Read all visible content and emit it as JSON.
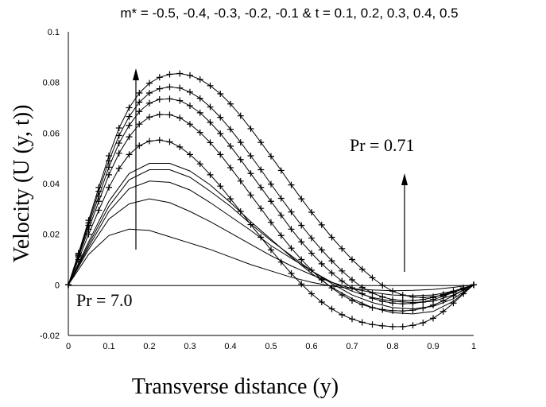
{
  "chart_data": {
    "type": "line",
    "title": "m* = -0.5, -0.4, -0.3, -0.2, -0.1 & t = 0.1, 0.2, 0.3, 0.4, 0.5",
    "xlabel": "Transverse distance (y)",
    "ylabel": "Velocity (U (y, t))",
    "xlim": [
      0,
      1
    ],
    "ylim": [
      -0.02,
      0.1
    ],
    "xticks": [
      "0",
      "0.1",
      "0.2",
      "0.3",
      "0.4",
      "0.5",
      "0.6",
      "0.7",
      "0.8",
      "0.9",
      "1"
    ],
    "yticks": [
      "-0.02",
      "0",
      "0.02",
      "0.04",
      "0.06",
      "0.08",
      "0.1"
    ],
    "grid": false,
    "legend": "none",
    "annotations": [
      {
        "text": "Pr = 0.71"
      },
      {
        "text": "Pr = 7.0"
      }
    ],
    "series": [
      {
        "marker": "none",
        "x": [
          0,
          0.05,
          0.1,
          0.15,
          0.2,
          0.25,
          0.3,
          0.35,
          0.4,
          0.45,
          0.5,
          0.55,
          0.6,
          0.65,
          0.7,
          0.75,
          0.8,
          0.85,
          0.9,
          0.95,
          1.0
        ],
        "values": [
          0,
          0.012,
          0.0195,
          0.022,
          0.0215,
          0.019,
          0.0165,
          0.014,
          0.011,
          0.008,
          0.0055,
          0.003,
          0.001,
          -0.0005,
          -0.0015,
          -0.002,
          -0.0023,
          -0.0022,
          -0.0018,
          -0.001,
          0
        ]
      },
      {
        "marker": "none",
        "x": [
          0,
          0.05,
          0.1,
          0.15,
          0.2,
          0.25,
          0.3,
          0.35,
          0.4,
          0.45,
          0.5,
          0.55,
          0.6,
          0.65,
          0.7,
          0.75,
          0.8,
          0.85,
          0.9,
          0.95,
          1.0
        ],
        "values": [
          0,
          0.014,
          0.026,
          0.032,
          0.034,
          0.0325,
          0.029,
          0.025,
          0.0205,
          0.016,
          0.0115,
          0.0075,
          0.004,
          0.001,
          -0.0015,
          -0.003,
          -0.004,
          -0.0043,
          -0.004,
          -0.0025,
          0
        ]
      },
      {
        "marker": "none",
        "x": [
          0,
          0.05,
          0.1,
          0.15,
          0.2,
          0.25,
          0.3,
          0.35,
          0.4,
          0.45,
          0.5,
          0.55,
          0.6,
          0.65,
          0.7,
          0.75,
          0.8,
          0.85,
          0.9,
          0.95,
          1.0
        ],
        "values": [
          0,
          0.015,
          0.029,
          0.038,
          0.041,
          0.0405,
          0.0375,
          0.0325,
          0.027,
          0.0215,
          0.0155,
          0.0105,
          0.0055,
          0.001,
          -0.0025,
          -0.005,
          -0.0065,
          -0.007,
          -0.0065,
          -0.004,
          0
        ]
      },
      {
        "marker": "none",
        "x": [
          0,
          0.05,
          0.1,
          0.15,
          0.2,
          0.25,
          0.3,
          0.35,
          0.4,
          0.45,
          0.5,
          0.55,
          0.6,
          0.65,
          0.7,
          0.75,
          0.8,
          0.85,
          0.9,
          0.95,
          1.0
        ],
        "values": [
          0,
          0.016,
          0.031,
          0.0415,
          0.0455,
          0.0455,
          0.0425,
          0.037,
          0.031,
          0.024,
          0.0175,
          0.0115,
          0.0055,
          0.0005,
          -0.004,
          -0.007,
          -0.009,
          -0.0095,
          -0.0085,
          -0.0055,
          0
        ]
      },
      {
        "marker": "none",
        "x": [
          0,
          0.05,
          0.1,
          0.15,
          0.2,
          0.25,
          0.3,
          0.35,
          0.4,
          0.45,
          0.5,
          0.55,
          0.6,
          0.65,
          0.7,
          0.75,
          0.8,
          0.85,
          0.9,
          0.95,
          1.0
        ],
        "values": [
          0,
          0.017,
          0.033,
          0.044,
          0.048,
          0.048,
          0.045,
          0.0395,
          0.0325,
          0.025,
          0.018,
          0.011,
          0.0045,
          -0.001,
          -0.0055,
          -0.009,
          -0.011,
          -0.0115,
          -0.0105,
          -0.0065,
          0
        ]
      },
      {
        "marker": "+",
        "x": [
          0,
          0.025,
          0.05,
          0.075,
          0.1,
          0.125,
          0.15,
          0.175,
          0.2,
          0.225,
          0.25,
          0.275,
          0.3,
          0.325,
          0.35,
          0.375,
          0.4,
          0.425,
          0.45,
          0.475,
          0.5,
          0.525,
          0.55,
          0.575,
          0.6,
          0.625,
          0.65,
          0.675,
          0.7,
          0.725,
          0.75,
          0.775,
          0.8,
          0.825,
          0.85,
          0.875,
          0.9,
          0.925,
          0.95,
          0.975,
          1.0
        ],
        "values": [
          0,
          0.01,
          0.02,
          0.0295,
          0.0385,
          0.046,
          0.0515,
          0.055,
          0.0568,
          0.0572,
          0.0565,
          0.0545,
          0.0515,
          0.0478,
          0.0435,
          0.039,
          0.034,
          0.029,
          0.0238,
          0.0188,
          0.0138,
          0.009,
          0.0045,
          0.0003,
          -0.0035,
          -0.0068,
          -0.0095,
          -0.0118,
          -0.0135,
          -0.0148,
          -0.0157,
          -0.0162,
          -0.0165,
          -0.0165,
          -0.016,
          -0.015,
          -0.0132,
          -0.0105,
          -0.0072,
          -0.0035,
          0
        ]
      },
      {
        "marker": "+",
        "x": [
          0,
          0.025,
          0.05,
          0.075,
          0.1,
          0.125,
          0.15,
          0.175,
          0.2,
          0.225,
          0.25,
          0.275,
          0.3,
          0.325,
          0.35,
          0.375,
          0.4,
          0.425,
          0.45,
          0.475,
          0.5,
          0.525,
          0.55,
          0.575,
          0.6,
          0.625,
          0.65,
          0.675,
          0.7,
          0.725,
          0.75,
          0.775,
          0.8,
          0.825,
          0.85,
          0.875,
          0.9,
          0.925,
          0.95,
          0.975,
          1.0
        ],
        "values": [
          0,
          0.011,
          0.022,
          0.033,
          0.0435,
          0.052,
          0.0585,
          0.0635,
          0.0663,
          0.0673,
          0.0672,
          0.066,
          0.0635,
          0.0602,
          0.0562,
          0.0515,
          0.0463,
          0.041,
          0.0355,
          0.0302,
          0.0247,
          0.0195,
          0.0145,
          0.01,
          0.0058,
          0.002,
          -0.0012,
          -0.004,
          -0.0062,
          -0.0078,
          -0.009,
          -0.0098,
          -0.0102,
          -0.0103,
          -0.01,
          -0.0092,
          -0.008,
          -0.0063,
          -0.0043,
          -0.002,
          0
        ]
      },
      {
        "marker": "+",
        "x": [
          0,
          0.025,
          0.05,
          0.075,
          0.1,
          0.125,
          0.15,
          0.175,
          0.2,
          0.225,
          0.25,
          0.275,
          0.3,
          0.325,
          0.35,
          0.375,
          0.4,
          0.425,
          0.45,
          0.475,
          0.5,
          0.525,
          0.55,
          0.575,
          0.6,
          0.625,
          0.65,
          0.675,
          0.7,
          0.725,
          0.75,
          0.775,
          0.8,
          0.825,
          0.85,
          0.875,
          0.9,
          0.925,
          0.95,
          0.975,
          1.0
        ],
        "values": [
          0,
          0.0115,
          0.0235,
          0.035,
          0.0465,
          0.056,
          0.063,
          0.0685,
          0.0718,
          0.0733,
          0.0735,
          0.0728,
          0.0708,
          0.068,
          0.0642,
          0.0598,
          0.0548,
          0.0495,
          0.044,
          0.0385,
          0.033,
          0.0275,
          0.022,
          0.017,
          0.0125,
          0.0083,
          0.0047,
          0.0015,
          -0.0012,
          -0.0035,
          -0.0053,
          -0.0065,
          -0.0072,
          -0.0075,
          -0.0073,
          -0.0068,
          -0.0058,
          -0.0045,
          -0.003,
          -0.0014,
          0
        ]
      },
      {
        "marker": "+",
        "x": [
          0,
          0.025,
          0.05,
          0.075,
          0.1,
          0.125,
          0.15,
          0.175,
          0.2,
          0.225,
          0.25,
          0.275,
          0.3,
          0.325,
          0.35,
          0.375,
          0.4,
          0.425,
          0.45,
          0.475,
          0.5,
          0.525,
          0.55,
          0.575,
          0.6,
          0.625,
          0.65,
          0.675,
          0.7,
          0.725,
          0.75,
          0.775,
          0.8,
          0.825,
          0.85,
          0.875,
          0.9,
          0.925,
          0.95,
          0.975,
          1.0
        ],
        "values": [
          0,
          0.012,
          0.0245,
          0.037,
          0.049,
          0.059,
          0.0665,
          0.0722,
          0.0758,
          0.0775,
          0.0782,
          0.0778,
          0.0762,
          0.0737,
          0.0703,
          0.0662,
          0.0615,
          0.0563,
          0.051,
          0.0455,
          0.0398,
          0.0342,
          0.0288,
          0.0235,
          0.0185,
          0.0138,
          0.0095,
          0.0055,
          0.002,
          -0.001,
          -0.0032,
          -0.0048,
          -0.0058,
          -0.0062,
          -0.0062,
          -0.0058,
          -0.005,
          -0.0038,
          -0.0025,
          -0.0012,
          0
        ]
      },
      {
        "marker": "+",
        "x": [
          0,
          0.025,
          0.05,
          0.075,
          0.1,
          0.125,
          0.15,
          0.175,
          0.2,
          0.225,
          0.25,
          0.275,
          0.3,
          0.325,
          0.35,
          0.375,
          0.4,
          0.425,
          0.45,
          0.475,
          0.5,
          0.525,
          0.55,
          0.575,
          0.6,
          0.625,
          0.65,
          0.675,
          0.7,
          0.725,
          0.75,
          0.775,
          0.8,
          0.825,
          0.85,
          0.875,
          0.9,
          0.925,
          0.95,
          0.975,
          1.0
        ],
        "values": [
          0,
          0.0125,
          0.0255,
          0.0385,
          0.051,
          0.062,
          0.07,
          0.0758,
          0.0797,
          0.082,
          0.0832,
          0.0835,
          0.0828,
          0.0812,
          0.0787,
          0.0755,
          0.0715,
          0.0668,
          0.0617,
          0.0563,
          0.0508,
          0.0452,
          0.0395,
          0.034,
          0.0287,
          0.0237,
          0.0188,
          0.0143,
          0.01,
          0.0062,
          0.0028,
          -0.0002,
          -0.0025,
          -0.004,
          -0.0048,
          -0.005,
          -0.0047,
          -0.004,
          -0.003,
          -0.0015,
          0
        ]
      }
    ]
  }
}
